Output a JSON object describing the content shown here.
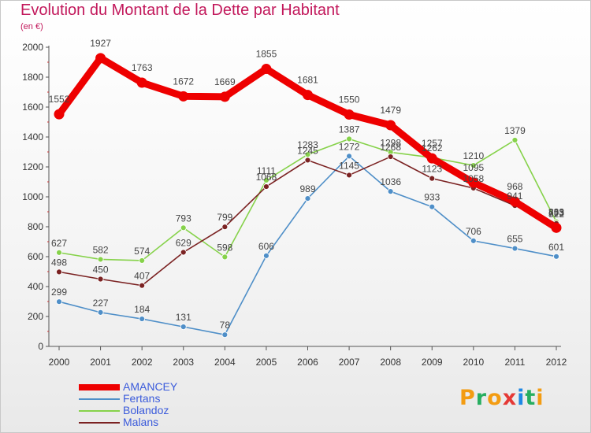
{
  "header": {
    "title": "Evolution du Montant de la Dette par Habitant",
    "subtitle": "(en €)"
  },
  "logo": {
    "text": "Proxiti",
    "colors": [
      "#f39c12",
      "#27ae60",
      "#f39c12",
      "#e53935",
      "#1e88e5",
      "#27ae60",
      "#f39c12"
    ]
  },
  "chart_data": {
    "type": "line",
    "x": [
      "2000",
      "2001",
      "2002",
      "2003",
      "2004",
      "2005",
      "2006",
      "2007",
      "2008",
      "2009",
      "2010",
      "2011",
      "2012"
    ],
    "ylim": [
      0,
      2000
    ],
    "yticks": [
      "0",
      "200",
      "400",
      "600",
      "800",
      "1000",
      "1200",
      "1400",
      "1600",
      "1800",
      "2000"
    ],
    "grid": false,
    "legend": "bottom-left",
    "series": [
      {
        "name": "AMANCEY",
        "color": "#ee0000",
        "values": [
          1552,
          1927,
          1763,
          1672,
          1669,
          1855,
          1681,
          1550,
          1479,
          1257,
          1095,
          968,
          793
        ]
      },
      {
        "name": "Fertans",
        "color": "#4f8fc8",
        "values": [
          299,
          227,
          184,
          131,
          78,
          606,
          989,
          1272,
          1036,
          933,
          706,
          655,
          601
        ]
      },
      {
        "name": "Bolandoz",
        "color": "#86d24a",
        "values": [
          627,
          582,
          574,
          793,
          598,
          1111,
          1283,
          1387,
          1298,
          1262,
          1210,
          1379,
          833
        ]
      },
      {
        "name": "Malans",
        "color": "#7b2222",
        "values": [
          498,
          450,
          407,
          629,
          799,
          1068,
          1245,
          1145,
          1268,
          1123,
          1058,
          941,
          822
        ]
      }
    ]
  }
}
